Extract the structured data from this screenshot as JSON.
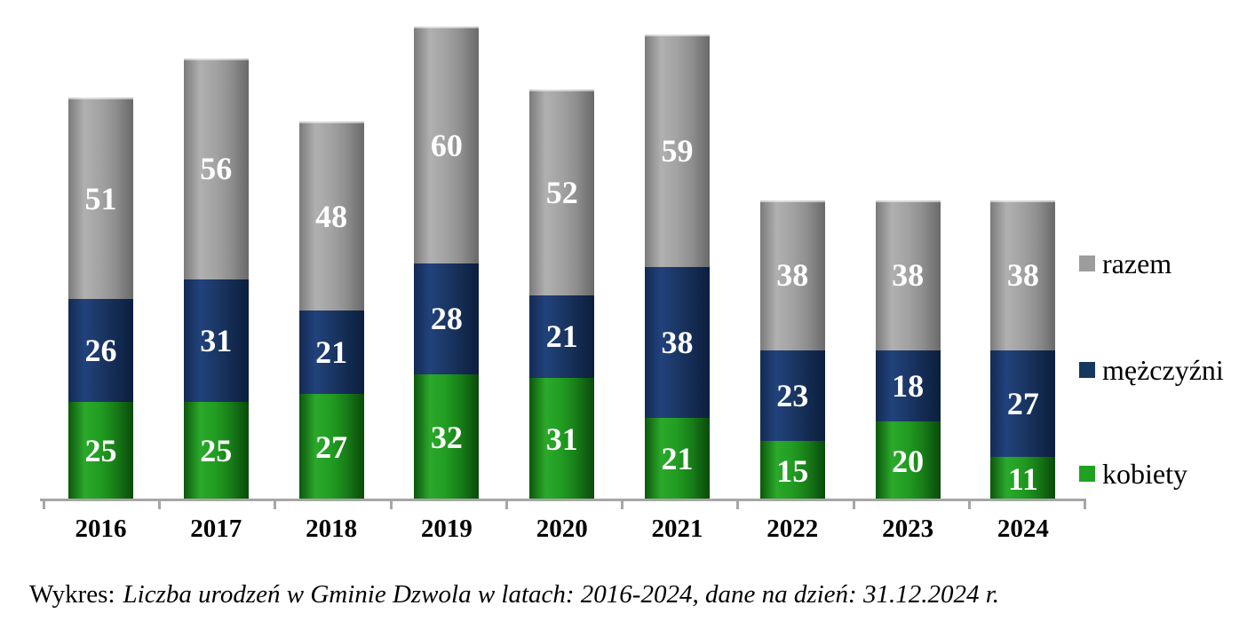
{
  "chart_data": {
    "type": "bar",
    "stacked": true,
    "title": "",
    "xlabel": "",
    "ylabel": "",
    "ylim": [
      0,
      120
    ],
    "grid": false,
    "legend_position": "right",
    "categories": [
      "2016",
      "2017",
      "2018",
      "2019",
      "2020",
      "2021",
      "2022",
      "2023",
      "2024"
    ],
    "series": [
      {
        "name": "kobiety",
        "color": "#21a121",
        "values": [
          25,
          25,
          27,
          32,
          31,
          21,
          15,
          20,
          11
        ]
      },
      {
        "name": "mężczyźni",
        "color": "#17375e",
        "values": [
          26,
          31,
          21,
          28,
          21,
          38,
          23,
          18,
          27
        ]
      },
      {
        "name": "razem",
        "color": "#9d9d9d",
        "values": [
          51,
          56,
          48,
          60,
          52,
          59,
          38,
          38,
          38
        ]
      }
    ],
    "value_labels_color": "#ffffff",
    "axis_color": "#a6a6a6"
  },
  "caption": {
    "prefix": "Wykres:",
    "text": "Liczba urodzeń w Gminie Dzwola w latach: 2016-2024, dane na dzień: 31.12.2024 r."
  }
}
